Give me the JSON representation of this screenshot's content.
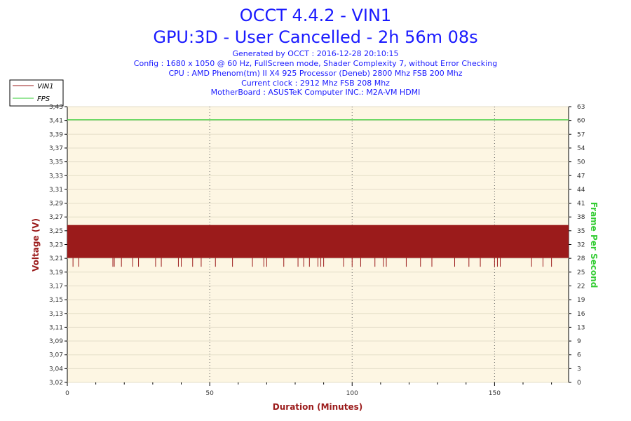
{
  "header": {
    "title": "OCCT 4.4.2 - VIN1",
    "subtitle": "GPU:3D - User Cancelled - 2h 56m 08s",
    "info_lines": [
      "Generated by OCCT : 2016-12-28 20:10:15",
      "Config : 1680 x 1050 @ 60 Hz, FullScreen mode, Shader Complexity 7, without Error Checking",
      "CPU : AMD Phenom(tm) II X4 925 Processor (Deneb) 2800 Mhz FSB 200 Mhz",
      "Current clock : 2912 Mhz FSB 208 Mhz",
      "MotherBoard : ASUSTeK Computer INC.: M2A-VM HDMI"
    ]
  },
  "legend": {
    "items": [
      {
        "label": "VIN1",
        "color": "#9b1b1b"
      },
      {
        "label": "FPS",
        "color": "#33cc33"
      }
    ]
  },
  "chart_data": {
    "type": "line",
    "title": "OCCT 4.4.2 - VIN1",
    "xlabel": "Duration (Minutes)",
    "ylabel": "Voltage (V)",
    "y2label": "Frame Per Second",
    "xlim": [
      0,
      176
    ],
    "ylim": [
      3.02,
      3.43
    ],
    "y2lim": [
      0,
      63
    ],
    "x_ticks": [
      "0",
      "50",
      "100",
      "150"
    ],
    "x_tick_values": [
      0,
      50,
      100,
      150
    ],
    "y_ticks": [
      "3,43",
      "3,41",
      "3,39",
      "3,37",
      "3,35",
      "3,33",
      "3,31",
      "3,29",
      "3,27",
      "3,25",
      "3,23",
      "3,21",
      "3,19",
      "3,17",
      "3,15",
      "3,13",
      "3,11",
      "3,09",
      "3,07",
      "3,04",
      "3,02"
    ],
    "y_tick_values": [
      3.43,
      3.41,
      3.39,
      3.37,
      3.35,
      3.33,
      3.31,
      3.29,
      3.27,
      3.25,
      3.23,
      3.21,
      3.19,
      3.17,
      3.15,
      3.13,
      3.11,
      3.09,
      3.07,
      3.04,
      3.02
    ],
    "y2_ticks": [
      "63",
      "60",
      "57",
      "54",
      "50",
      "47",
      "44",
      "41",
      "38",
      "35",
      "32",
      "28",
      "25",
      "22",
      "19",
      "16",
      "13",
      "9",
      "6",
      "3",
      "0"
    ],
    "grid": true,
    "legend_position": "top-left",
    "series": [
      {
        "name": "VIN1",
        "axis": "left",
        "color": "#9b1b1b",
        "band_min": 3.205,
        "band_max": 3.254,
        "dip_min": 3.192,
        "dip_x": [
          2,
          4,
          16,
          16.5,
          19,
          23,
          25,
          31,
          33,
          39,
          40,
          44,
          47,
          52,
          58,
          65,
          69,
          70,
          76,
          81,
          83,
          85,
          88,
          89,
          90,
          97,
          100,
          103,
          108,
          111,
          112,
          119,
          124,
          128,
          136,
          141,
          145,
          150,
          151,
          152,
          163,
          167,
          170
        ]
      },
      {
        "name": "FPS",
        "axis": "right",
        "color": "#33cc33",
        "value": 60
      }
    ]
  }
}
